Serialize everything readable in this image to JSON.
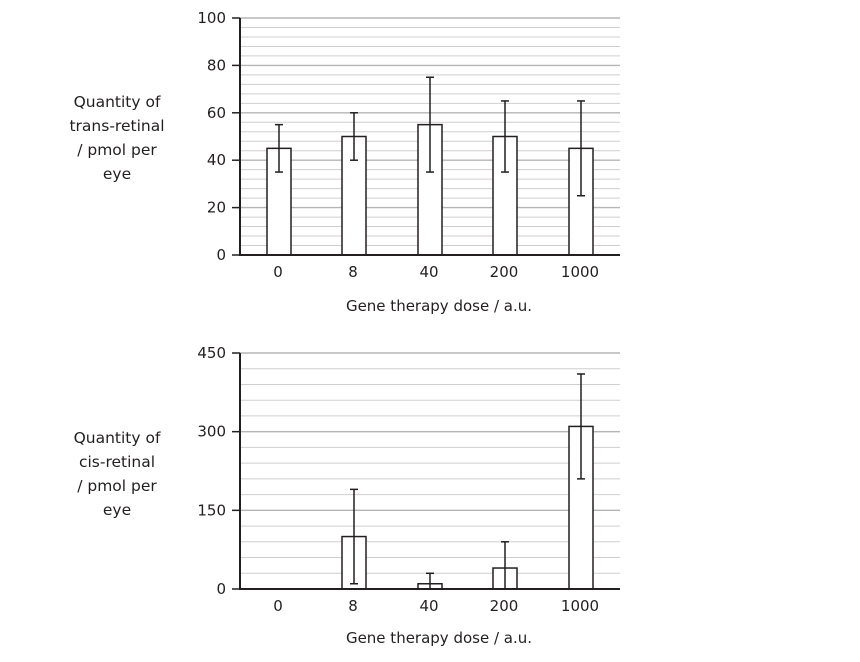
{
  "chart_data": [
    {
      "type": "bar",
      "title": "",
      "categories": [
        "0",
        "8",
        "40",
        "200",
        "1000"
      ],
      "values": [
        45,
        50,
        55,
        50,
        45
      ],
      "error_low": [
        35,
        40,
        35,
        35,
        25
      ],
      "error_high": [
        55,
        60,
        75,
        65,
        65
      ],
      "xlabel": "Gene therapy dose / a.u.",
      "ylabel": [
        "Quantity of",
        "trans-retinal",
        "/ pmol per",
        "eye"
      ],
      "ylim": [
        0,
        100
      ],
      "yticks": [
        0,
        20,
        40,
        60,
        80,
        100
      ],
      "minor_grid_step": 4,
      "grid": true
    },
    {
      "type": "bar",
      "title": "",
      "categories": [
        "0",
        "8",
        "40",
        "200",
        "1000"
      ],
      "values": [
        0,
        100,
        10,
        40,
        310
      ],
      "error_low": [
        0,
        10,
        0,
        0,
        210
      ],
      "error_high": [
        0,
        190,
        30,
        90,
        410
      ],
      "xlabel": "Gene therapy dose / a.u.",
      "ylabel": [
        "Quantity of",
        "cis-retinal",
        "/ pmol per",
        "eye"
      ],
      "ylim": [
        0,
        450
      ],
      "yticks": [
        0,
        150,
        300,
        450
      ],
      "minor_grid_step": 30,
      "grid": true
    }
  ]
}
